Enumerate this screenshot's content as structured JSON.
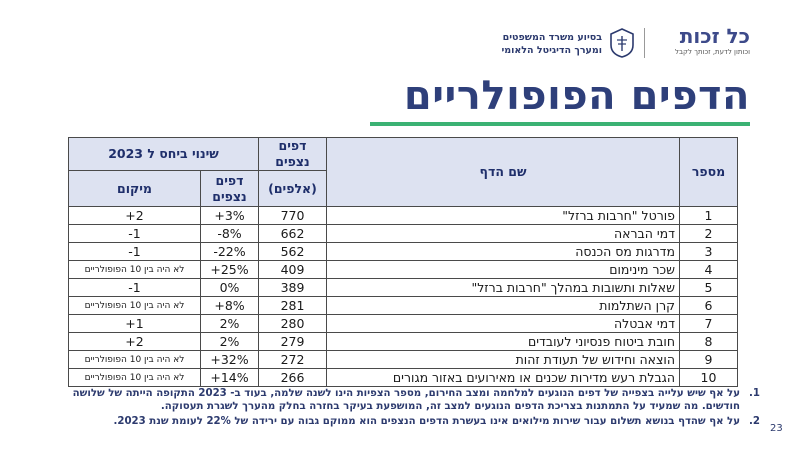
{
  "header": {
    "logo_name": "כל זכות",
    "logo_tagline": "וכותון לדעת, זכותך לקבל",
    "ministry_line1": "בסיוע משרד המשפטים",
    "ministry_line2": "ומערך הדיגיטל הלאומי"
  },
  "title": "הדפים הפופולריים",
  "table": {
    "headers": {
      "num": "מספר",
      "name": "שם הדף",
      "views_top": "דפים נצפים",
      "views_sub": "(אלפים)",
      "change_group": "שינוי ביחס ל 2023",
      "change_pct": "דפים נצפים",
      "change_rank": "מיקום"
    },
    "rows": [
      {
        "num": "1",
        "name": "פורטל \"חרבות ברזל\"",
        "views": "770",
        "pct": "+3%",
        "rank": "+2"
      },
      {
        "num": "2",
        "name": "דמי הבראה",
        "views": "662",
        "pct": "-8%",
        "rank": "-1"
      },
      {
        "num": "3",
        "name": "מדרגות מס הכנסה",
        "views": "562",
        "pct": "-22%",
        "rank": "-1"
      },
      {
        "num": "4",
        "name": "שכר מינימום",
        "views": "409",
        "pct": "+25%",
        "rank": "לא היה בין 10 הפופולריים"
      },
      {
        "num": "5",
        "name": "שאלות ותשובות במהלך \"חרבות ברזל\"",
        "views": "389",
        "pct": "0%",
        "rank": "-1"
      },
      {
        "num": "6",
        "name": "קרן השתלמות",
        "views": "281",
        "pct": "+8%",
        "rank": "לא היה בין 10 הפופולריים"
      },
      {
        "num": "7",
        "name": "דמי אבטלה",
        "views": "280",
        "pct": "2%",
        "rank": "+1"
      },
      {
        "num": "8",
        "name": "חובת ביטוח פנסיוני לעובדים",
        "views": "279",
        "pct": "2%",
        "rank": "+2"
      },
      {
        "num": "9",
        "name": "הוצאה וחידוש של תעודת זהות",
        "views": "272",
        "pct": "+32%",
        "rank": "לא היה בין 10 הפופולריים"
      },
      {
        "num": "10",
        "name": "הגבלת רעש מדירות שכנים או מאירועים באזור מגורים",
        "views": "266",
        "pct": "+14%",
        "rank": "לא היה בין 10 הפופולריים"
      }
    ]
  },
  "notes": [
    {
      "num": "1.",
      "text": "על אף שיש עלייה בצפייה של דפים הנוגעים למלחמה ומצב החירום, מספר הצפיות הינו לשנה שלמה, בעוד ב- 2023 התקופה הייתה של שלושה חודשים. מה שמעיד על התמתנות בצריכת הדפים הנוגעים למצב זה, המושפעת בעיקר בחזרה בחלק מהערך לשגרת תעסוקה."
    },
    {
      "num": "2.",
      "text": "על אף שהדף בנושא תשלום עבור שירות מילואים אינו בעשרת הדפים הנצפים הוא ממוקם גבוה עם ירידה של 22% לעומת שנת 2023."
    }
  ],
  "page_number": "23",
  "colors": {
    "title": "#2e3f7a",
    "accent_green": "#3bb273",
    "header_fill": "#dde2f1"
  }
}
